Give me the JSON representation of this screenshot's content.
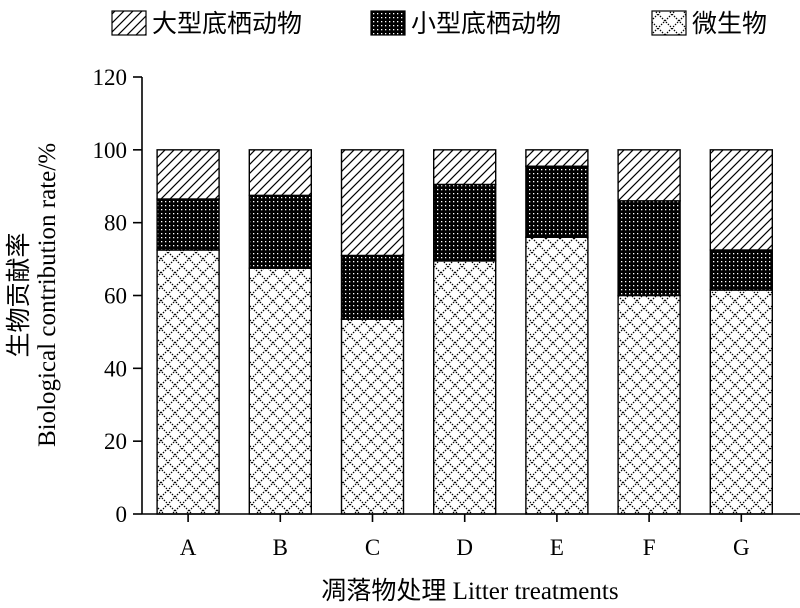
{
  "chart_data": {
    "type": "bar",
    "stacked": true,
    "categories": [
      "A",
      "B",
      "C",
      "D",
      "E",
      "F",
      "G"
    ],
    "series": [
      {
        "name": "微生物",
        "pattern": "crosshatch",
        "values": [
          72.5,
          67.5,
          53.5,
          69.5,
          76,
          60,
          61.5
        ]
      },
      {
        "name": "小型底栖动物",
        "pattern": "dots",
        "values": [
          14,
          20,
          17.5,
          21,
          19.5,
          26,
          11
        ]
      },
      {
        "name": "大型底栖动物",
        "pattern": "diagonal",
        "values": [
          13.5,
          12.5,
          29,
          9.5,
          4.5,
          14,
          27.5
        ]
      }
    ],
    "xlabel": "凋落物处理 Litter treatments",
    "ylabel_cn": "生物贡献率",
    "ylabel_en": "Biological contribution rate/%",
    "ylim": [
      0,
      120
    ],
    "yticks": [
      0,
      20,
      40,
      60,
      80,
      100,
      120
    ],
    "grid": false,
    "legend_position": "top",
    "legend_order": [
      "大型底栖动物",
      "小型底栖动物",
      "微生物"
    ]
  }
}
